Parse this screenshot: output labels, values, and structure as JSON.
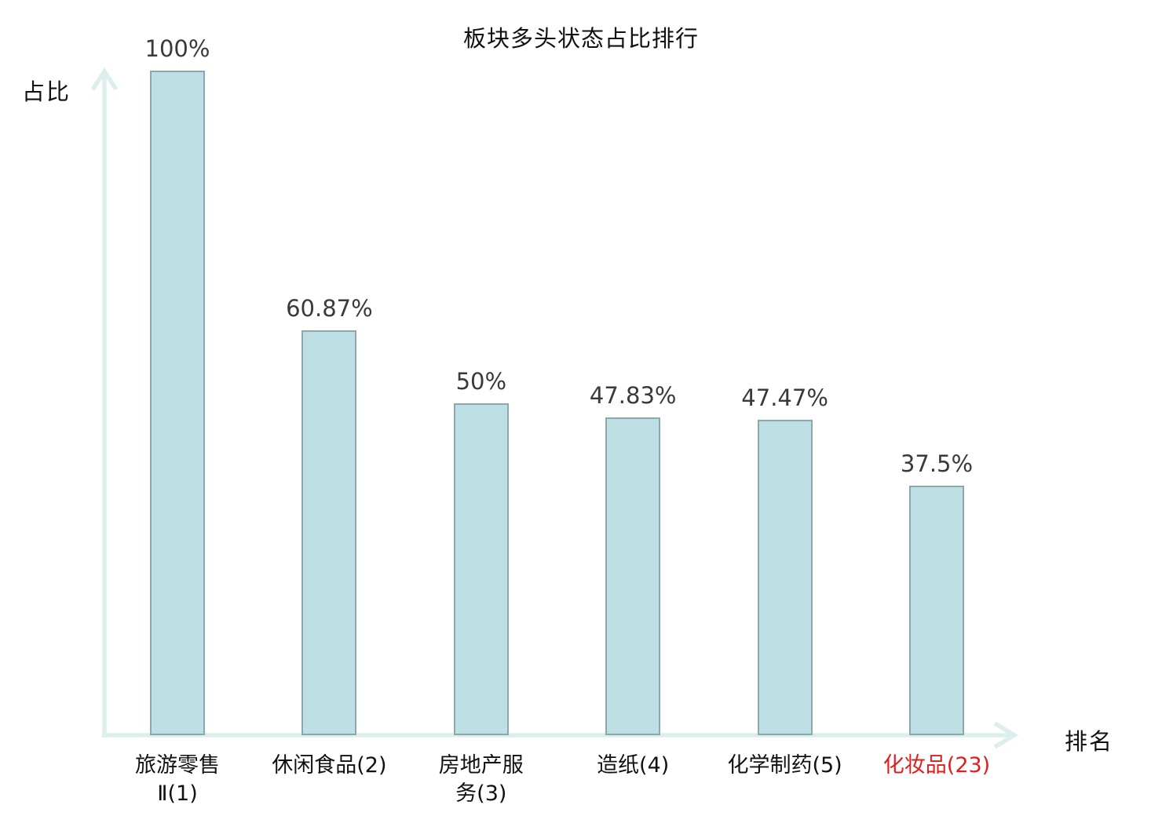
{
  "chart_data": {
    "type": "bar",
    "title": "板块多头状态占比排行",
    "xlabel": "排名",
    "ylabel": "占比",
    "categories": [
      "旅游零售\nⅡ(1)",
      "休闲食品(2)",
      "房地产服\n务(3)",
      "造纸(4)",
      "化学制药(5)",
      "化妆品(23)"
    ],
    "values": [
      100,
      60.87,
      50,
      47.83,
      47.47,
      37.5
    ],
    "value_labels": [
      "100%",
      "60.87%",
      "50%",
      "47.83%",
      "47.47%",
      "37.5%"
    ],
    "ylim": [
      0,
      100
    ],
    "grid": false,
    "highlight_index": 5,
    "colors": {
      "bar_fill": "#bedfe3",
      "bar_border": "#8ba8ac",
      "axis": "#ddefec",
      "value_label": "#3a3a3a",
      "category_label": "#111111",
      "highlight": "#e11d1d",
      "title": "#111111",
      "background": "#ffffff"
    }
  }
}
